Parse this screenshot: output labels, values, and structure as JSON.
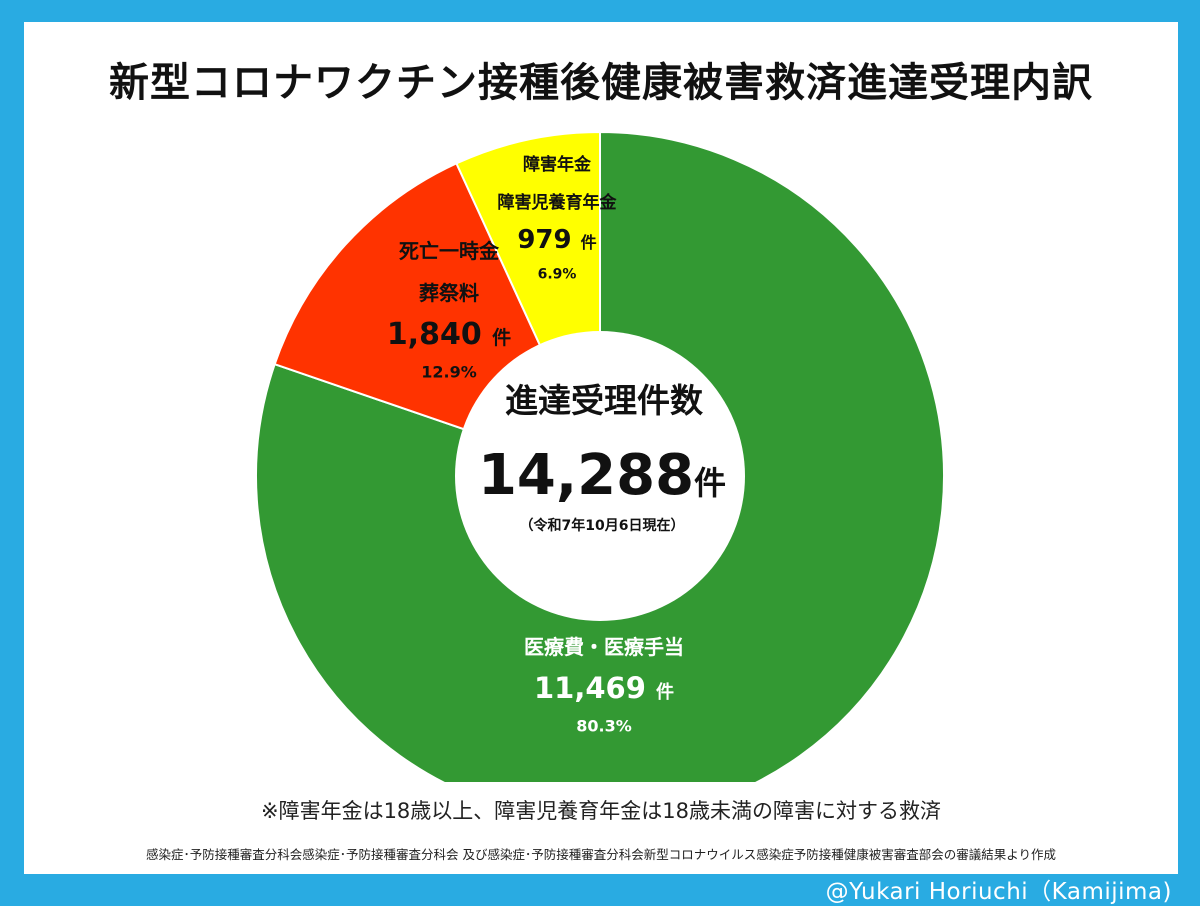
{
  "title": "新型コロナワクチン接種後健康被害救済進達受理内訳",
  "center": {
    "label": "進達受理件数",
    "total": "14,288",
    "total_unit": "件",
    "as_of": "（令和7年10月6日現在）"
  },
  "note": "※障害年金は18歳以上、障害児養育年金は18歳未満の障害に対する救済",
  "source": "感染症･予防接種審査分科会感染症･予防接種審査分科会 及び感染症･予防接種審査分科会新型コロナウイルス感染症予防接種健康被害審査部会の審議結果より作成",
  "credit": "@Yukari Horiuchi（Kamijima)",
  "chart_data": {
    "type": "pie",
    "title": "新型コロナワクチン接種後健康被害救済進達受理内訳",
    "unit": "件",
    "slices": [
      {
        "label_lines": [
          "医療費・医療手当"
        ],
        "count": "11,469",
        "value": 11469,
        "percent": "80.3%",
        "color": "#339933",
        "text_color": "#ffffff"
      },
      {
        "label_lines": [
          "死亡一時金",
          "葬祭料"
        ],
        "count": "1,840",
        "value": 1840,
        "percent": "12.9%",
        "color": "#FF3300",
        "text_color": "#111111"
      },
      {
        "label_lines": [
          "障害年金",
          "障害児養育年金"
        ],
        "count": "979",
        "value": 979,
        "percent": "6.9%",
        "color": "#FFFF00",
        "text_color": "#111111"
      }
    ]
  }
}
